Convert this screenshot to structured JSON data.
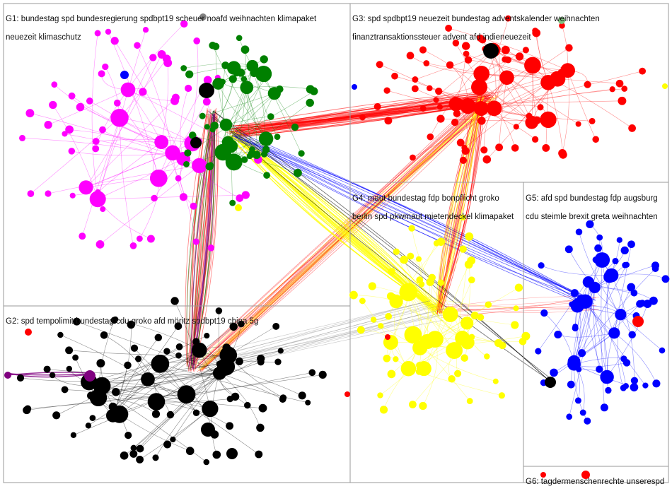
{
  "groups": [
    {
      "id": "G1",
      "label_lines": [
        "G1: bundestag spd bundesregierung spdbpt19 scheuer noafd weihnachten klimapaket",
        "neuezeit klimaschutz"
      ],
      "colors": [
        "#ff00ff",
        "#008000"
      ]
    },
    {
      "id": "G2",
      "label_lines": [
        "G2: spd tempolimit bundestag cdu groko afd möritz spdbpt19 china 5g"
      ],
      "colors": [
        "#000000"
      ]
    },
    {
      "id": "G3",
      "label_lines": [
        "G3: spd spdbpt19 neuezeit bundestag adventskalender weihnachten",
        "finanztransaktionssteuer advent afd indieneuezeit"
      ],
      "colors": [
        "#ff0000"
      ]
    },
    {
      "id": "G4",
      "label_lines": [
        "G4: maut bundestag fdp bonpflicht groko",
        "berlin spd pkwmaut mietendeckel klimapaket"
      ],
      "colors": [
        "#ffff00"
      ]
    },
    {
      "id": "G5",
      "label_lines": [
        "G5: afd spd bundestag fdp augsburg",
        "cdu steimle brexit greta weihnachten"
      ],
      "colors": [
        "#0000ff"
      ]
    },
    {
      "id": "G6",
      "label_lines": [
        "G6: tagdermenschenrechte unserespd"
      ],
      "colors": [
        "#ff0000"
      ]
    }
  ],
  "colors": {
    "magenta": "#ff00ff",
    "green": "#008000",
    "black": "#000000",
    "red": "#ff0000",
    "yellow": "#ffff00",
    "blue": "#0000ff",
    "purple": "#800080",
    "gray": "#808080",
    "border": "#999999"
  }
}
